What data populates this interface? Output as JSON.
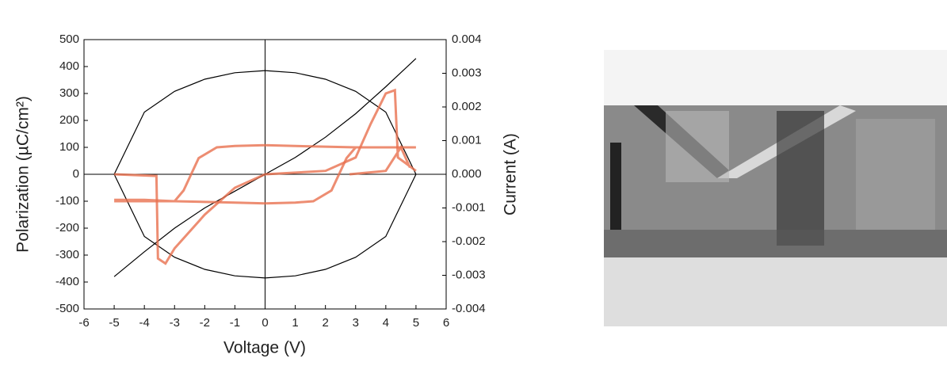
{
  "chart_data": {
    "type": "line",
    "x_label": "Voltage (V)",
    "y_label": "Polarization (µC/cm²)",
    "y2_label": "Current (A)",
    "xlim": [
      -6,
      6
    ],
    "xticks": [
      -6,
      -5,
      -4,
      -3,
      -2,
      -1,
      0,
      1,
      2,
      3,
      4,
      5,
      6
    ],
    "ylim": [
      -500,
      500
    ],
    "yticks": [
      -500,
      -400,
      -300,
      -200,
      -100,
      0,
      100,
      200,
      300,
      400,
      500
    ],
    "y2lim": [
      -0.004,
      0.004
    ],
    "y2ticks": [
      -0.004,
      -0.003,
      -0.002,
      -0.001,
      {
        "value": 0,
        "label": "0.000"
      },
      0.001,
      0.002,
      0.003,
      0.004
    ],
    "series": [
      {
        "color": "#000000",
        "x": [
          -5,
          -4,
          -3,
          -2,
          -1,
          0,
          1,
          2,
          3,
          4,
          5,
          4,
          3,
          2,
          1,
          0,
          -1,
          -2,
          -3,
          -4,
          -5
        ],
        "values": [
          0,
          231,
          308,
          353,
          377,
          385,
          377,
          353,
          308,
          231,
          0,
          -231,
          -308,
          -353,
          -377,
          -385,
          -377,
          -353,
          -308,
          -231,
          0
        ]
      },
      {
        "color": "#000000",
        "axis": "y2",
        "x": [
          -5,
          -4,
          -3,
          -2,
          -1,
          0,
          1,
          2,
          3,
          4,
          5
        ],
        "values": [
          -0.00304,
          -0.0023,
          -0.0016,
          -0.001,
          -0.0005,
          0,
          0.0005,
          0.0011,
          0.0018,
          0.0026,
          0.00344
        ]
      },
      {
        "color": "#e8704f",
        "x": [
          5,
          3,
          1,
          0,
          -1,
          -1.6,
          -2.2,
          -2.7,
          -3,
          -4,
          -5,
          null,
          -5,
          -3,
          -1,
          0,
          1,
          1.6,
          2.2,
          2.7,
          3,
          4,
          5
        ],
        "values": [
          100,
          100,
          105,
          108,
          105,
          100,
          60,
          -60,
          -100,
          -95,
          -95,
          null,
          -100,
          -100,
          -105,
          -108,
          -105,
          -100,
          -60,
          60,
          100,
          100,
          100
        ]
      },
      {
        "color": "#e8704f",
        "axis": "y2",
        "x": [
          -5,
          -3.6,
          -3.55,
          -3.3,
          -3,
          -2,
          -1,
          0,
          2,
          3,
          3.5,
          4,
          4.3,
          4.4,
          5,
          null,
          2.8,
          4,
          4.5,
          4.8
        ],
        "values": [
          0,
          -5e-05,
          -0.0025,
          -0.00265,
          -0.0022,
          -0.0012,
          -0.0004,
          0,
          0.0001,
          0.0005,
          0.0015,
          0.0024,
          0.0025,
          0.0005,
          0.0001,
          null,
          0,
          0.0001,
          0.0008,
          0.0002
        ]
      }
    ]
  }
}
